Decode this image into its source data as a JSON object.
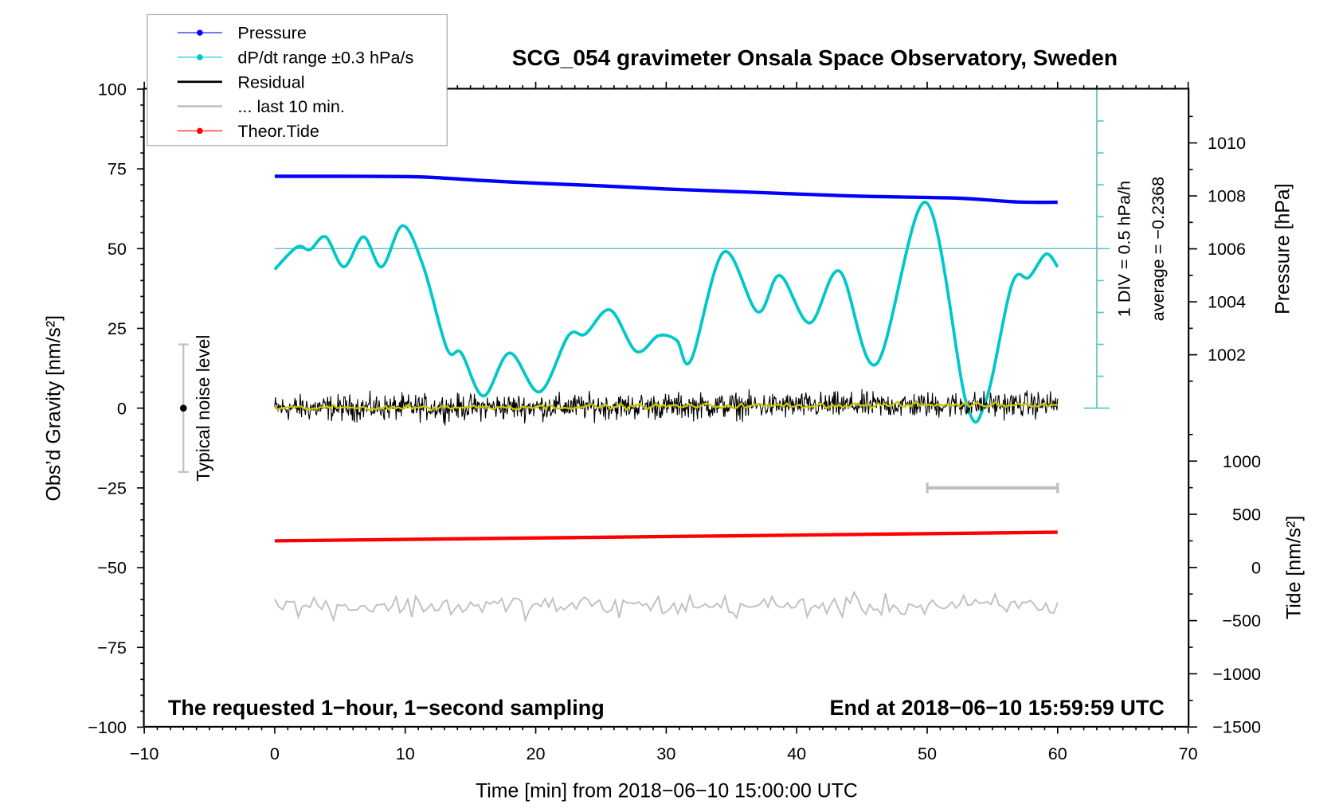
{
  "chart_data": {
    "type": "line",
    "title": "SCG_054 gravimeter Onsala Space Observatory, Sweden",
    "xlabel": "Time [min] from 2018−06−10 15:00:00 UTC",
    "ylabel_left": "Obs’d Gravity [nm/s²]",
    "ylabel_right_pressure": "Pressure [hPa]",
    "ylabel_right_tide": "Tide [nm/s²]",
    "xlim": [
      -10,
      70
    ],
    "ylim": [
      -100,
      100
    ],
    "x_ticks": [
      -10,
      0,
      10,
      20,
      30,
      40,
      50,
      60,
      70
    ],
    "x_tick_labels": [
      "−10",
      "0",
      "10",
      "20",
      "30",
      "40",
      "50",
      "60",
      "70"
    ],
    "y_ticks": [
      100,
      75,
      50,
      25,
      0,
      -25,
      -50,
      -75,
      -100
    ],
    "y_tick_labels": [
      "100",
      "75",
      "50",
      "25",
      "0",
      "−25",
      "−50",
      "−75",
      "−100"
    ],
    "pressure_ticks": [
      1010,
      1008,
      1006,
      1004,
      1002
    ],
    "pressure_tick_labels": [
      "1010",
      "1008",
      "1006",
      "1004",
      "1002"
    ],
    "tide_ticks": [
      1000,
      500,
      0,
      -500,
      -1000,
      -1500
    ],
    "tide_tick_labels": [
      "1000",
      "500",
      "0",
      "−500",
      "−1000",
      "−1500"
    ],
    "annotations": {
      "left_bottom": "The requested 1−hour, 1−second sampling",
      "right_bottom": "End at 2018−06−10 15:59:59 UTC",
      "noise_label": "Typical noise level",
      "div_label": "1 DIV = 0.5 hPa/h",
      "average_label": "average = −0.2368"
    },
    "legend": {
      "placement": "top-left",
      "entries": [
        {
          "label": "Pressure",
          "color": "#0000ff",
          "marker": true
        },
        {
          "label": "dP/dt range ±0.3 hPa/s",
          "color": "#00c8c8",
          "marker": true
        },
        {
          "label": "Residual",
          "color": "#000000",
          "marker": false
        },
        {
          "label": "... last 10 min.",
          "color": "#c0c0c0",
          "marker": false
        },
        {
          "label": "Theor.Tide",
          "color": "#ff0000",
          "marker": true
        }
      ]
    },
    "series": [
      {
        "name": "Pressure",
        "axis": "pressure_hPa",
        "color": "#0000ff",
        "x": [
          0,
          5,
          10,
          12,
          16,
          20,
          25,
          30,
          37,
          44,
          50,
          53,
          57,
          60
        ],
        "y": [
          1008.74,
          1008.74,
          1008.73,
          1008.7,
          1008.58,
          1008.48,
          1008.38,
          1008.26,
          1008.13,
          1008.0,
          1007.94,
          1007.9,
          1007.77,
          1007.76
        ]
      },
      {
        "name": "dP/dt",
        "axis": "gravity",
        "color": "#00c8c8",
        "x": [
          0,
          1.7,
          2.7,
          3.9,
          5.3,
          6.8,
          8.2,
          9.8,
          11.4,
          13.2,
          14.3,
          16,
          18,
          20.3,
          22.5,
          23.8,
          25.7,
          27.7,
          29.4,
          30.8,
          31.9,
          34.4,
          37,
          38.7,
          41,
          43.3,
          46.1,
          49.9,
          53,
          54.5,
          56.5,
          57.8,
          59.1,
          60
        ],
        "y": [
          43.5,
          50.5,
          49.7,
          53.7,
          44.3,
          53.7,
          44.3,
          57.2,
          44.3,
          18.6,
          17.3,
          3.8,
          17.3,
          5.1,
          22.7,
          23.2,
          30.8,
          17.8,
          22.7,
          21.3,
          15.1,
          48.9,
          30.2,
          41.6,
          26.7,
          42.9,
          13.8,
          64.5,
          1.6,
          2.4,
          38.9,
          41,
          48.3,
          44.3
        ]
      },
      {
        "name": "Residual",
        "axis": "gravity",
        "color": "#000000",
        "x_range": [
          0,
          60
        ],
        "center": 0,
        "noise_amplitude": 4
      },
      {
        "name": "Residual smoothed",
        "axis": "gravity",
        "color": "#c8c800",
        "x_range": [
          0,
          60
        ],
        "center": 0,
        "noise_amplitude": 0.8
      },
      {
        "name": "... last 10 min.",
        "axis": "gravity",
        "color": "#c0c0c0",
        "x_range": [
          0,
          60
        ],
        "center": -62,
        "noise_amplitude": 3.5
      },
      {
        "name": "Theor.Tide",
        "axis": "tide",
        "color": "#ff0000",
        "x": [
          0,
          60
        ],
        "y": [
          250,
          331
        ]
      }
    ],
    "noise_level": {
      "x": -7,
      "center": 0,
      "range": [
        -20,
        20
      ]
    },
    "last10_bar": {
      "x": [
        50,
        60
      ],
      "y": -25
    },
    "dpdt_scale": {
      "x": 63,
      "reference_y": 50,
      "range": [
        0,
        100
      ],
      "divisions": 10
    },
    "grid": false
  }
}
